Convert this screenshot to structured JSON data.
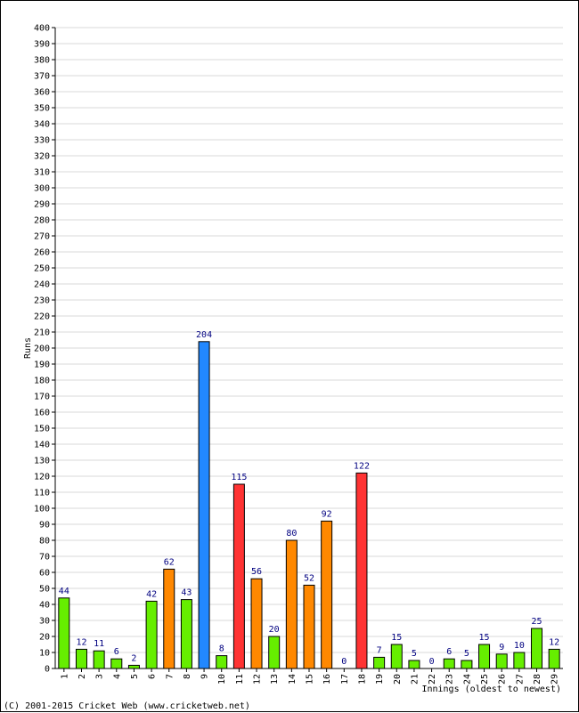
{
  "chart_data": {
    "type": "bar",
    "title": "",
    "xlabel": "Innings (oldest to newest)",
    "ylabel": "Runs",
    "ylim": [
      0,
      400
    ],
    "ytick_step": 10,
    "grid": true,
    "categories": [
      "1",
      "2",
      "3",
      "4",
      "5",
      "6",
      "7",
      "8",
      "9",
      "10",
      "11",
      "12",
      "13",
      "14",
      "15",
      "16",
      "17",
      "18",
      "19",
      "20",
      "21",
      "22",
      "23",
      "24",
      "25",
      "26",
      "27",
      "28",
      "29"
    ],
    "values": [
      44,
      12,
      11,
      6,
      2,
      42,
      62,
      43,
      204,
      8,
      115,
      56,
      20,
      80,
      52,
      92,
      0,
      122,
      7,
      15,
      5,
      0,
      6,
      5,
      15,
      9,
      10,
      25,
      12
    ],
    "bar_colors": [
      "#66ee00",
      "#66ee00",
      "#66ee00",
      "#66ee00",
      "#66ee00",
      "#66ee00",
      "#ff8800",
      "#66ee00",
      "#2288ff",
      "#66ee00",
      "#ff3333",
      "#ff8800",
      "#66ee00",
      "#ff8800",
      "#ff8800",
      "#ff8800",
      "#66ee00",
      "#ff3333",
      "#66ee00",
      "#66ee00",
      "#66ee00",
      "#66ee00",
      "#66ee00",
      "#66ee00",
      "#66ee00",
      "#66ee00",
      "#66ee00",
      "#66ee00",
      "#66ee00"
    ]
  },
  "footer": "(C) 2001-2015 Cricket Web (www.cricketweb.net)"
}
